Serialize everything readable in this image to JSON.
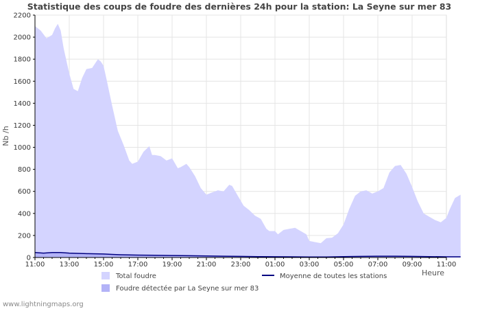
{
  "chart_data": {
    "type": "area",
    "title": "Statistique des coups de foudre des dernières 24h pour la station: La Seyne sur mer 83",
    "ylabel": "Nb /h",
    "xlabel": "Heure",
    "ylim": [
      0,
      2200
    ],
    "y_ticks": [
      0,
      200,
      400,
      600,
      800,
      1000,
      1200,
      1400,
      1600,
      1800,
      2000,
      2200
    ],
    "x_ticks": [
      "11:00",
      "13:00",
      "15:00",
      "17:00",
      "19:00",
      "21:00",
      "23:00",
      "01:00",
      "03:00",
      "05:00",
      "07:00",
      "09:00",
      "11:00"
    ],
    "x_hours": [
      0,
      24
    ],
    "series": [
      {
        "name": "Total foudre",
        "style": "area",
        "color": "#d4d4ff",
        "points": [
          [
            0,
            2100
          ],
          [
            0.33,
            2060
          ],
          [
            0.67,
            1990
          ],
          [
            1,
            2020
          ],
          [
            1.17,
            2080
          ],
          [
            1.33,
            2120
          ],
          [
            1.5,
            2060
          ],
          [
            1.67,
            1900
          ],
          [
            2,
            1670
          ],
          [
            2.25,
            1530
          ],
          [
            2.5,
            1510
          ],
          [
            2.75,
            1630
          ],
          [
            3,
            1710
          ],
          [
            3.33,
            1720
          ],
          [
            3.67,
            1800
          ],
          [
            3.83,
            1780
          ],
          [
            4,
            1740
          ],
          [
            4.17,
            1620
          ],
          [
            4.5,
            1380
          ],
          [
            4.83,
            1150
          ],
          [
            5.17,
            1020
          ],
          [
            5.5,
            880
          ],
          [
            5.67,
            850
          ],
          [
            6,
            870
          ],
          [
            6.33,
            960
          ],
          [
            6.67,
            1010
          ],
          [
            6.83,
            930
          ],
          [
            7,
            930
          ],
          [
            7.33,
            920
          ],
          [
            7.67,
            880
          ],
          [
            8,
            900
          ],
          [
            8.33,
            810
          ],
          [
            8.5,
            820
          ],
          [
            8.83,
            850
          ],
          [
            9,
            820
          ],
          [
            9.33,
            740
          ],
          [
            9.67,
            630
          ],
          [
            10,
            570
          ],
          [
            10.33,
            590
          ],
          [
            10.67,
            610
          ],
          [
            11,
            600
          ],
          [
            11.33,
            660
          ],
          [
            11.5,
            650
          ],
          [
            11.83,
            560
          ],
          [
            12.17,
            470
          ],
          [
            12.5,
            430
          ],
          [
            12.83,
            380
          ],
          [
            13.17,
            350
          ],
          [
            13.5,
            260
          ],
          [
            13.67,
            240
          ],
          [
            14,
            240
          ],
          [
            14.17,
            210
          ],
          [
            14.5,
            250
          ],
          [
            14.83,
            260
          ],
          [
            15.17,
            270
          ],
          [
            15.5,
            240
          ],
          [
            15.83,
            210
          ],
          [
            16,
            150
          ],
          [
            16.33,
            140
          ],
          [
            16.67,
            130
          ],
          [
            17,
            175
          ],
          [
            17.33,
            180
          ],
          [
            17.67,
            220
          ],
          [
            18,
            300
          ],
          [
            18.33,
            440
          ],
          [
            18.67,
            560
          ],
          [
            19,
            600
          ],
          [
            19.33,
            610
          ],
          [
            19.67,
            580
          ],
          [
            20,
            600
          ],
          [
            20.33,
            630
          ],
          [
            20.67,
            770
          ],
          [
            21,
            830
          ],
          [
            21.33,
            840
          ],
          [
            21.67,
            760
          ],
          [
            22,
            640
          ],
          [
            22.33,
            510
          ],
          [
            22.67,
            400
          ],
          [
            23,
            370
          ],
          [
            23.33,
            340
          ],
          [
            23.67,
            320
          ],
          [
            24,
            360
          ],
          [
            24.17,
            430
          ],
          [
            24.5,
            540
          ],
          [
            24.83,
            570
          ]
        ]
      },
      {
        "name": "Foudre détectée par La Seyne sur mer 83",
        "style": "area",
        "color": "#b3b3f7",
        "points": [
          [
            0,
            45
          ],
          [
            0.5,
            40
          ],
          [
            1,
            45
          ],
          [
            1.5,
            45
          ],
          [
            2,
            40
          ],
          [
            3,
            35
          ],
          [
            4,
            32
          ],
          [
            4.5,
            28
          ],
          [
            5,
            25
          ],
          [
            6,
            22
          ],
          [
            7,
            20
          ],
          [
            8,
            18
          ],
          [
            9,
            16
          ],
          [
            10,
            14
          ],
          [
            11,
            12
          ],
          [
            12,
            10
          ],
          [
            13,
            8
          ],
          [
            14,
            7
          ],
          [
            15,
            6
          ],
          [
            16,
            5
          ],
          [
            17,
            5
          ],
          [
            18,
            8
          ],
          [
            19,
            10
          ],
          [
            20,
            12
          ],
          [
            21,
            12
          ],
          [
            22,
            10
          ],
          [
            23,
            8
          ],
          [
            24,
            6
          ],
          [
            24.83,
            6
          ]
        ]
      },
      {
        "name": "Moyenne de toutes les stations",
        "style": "line",
        "color": "#000080",
        "points": [
          [
            0,
            45
          ],
          [
            0.5,
            40
          ],
          [
            1,
            45
          ],
          [
            1.5,
            45
          ],
          [
            2,
            40
          ],
          [
            3,
            35
          ],
          [
            4,
            32
          ],
          [
            4.5,
            28
          ],
          [
            5,
            25
          ],
          [
            6,
            22
          ],
          [
            7,
            20
          ],
          [
            8,
            18
          ],
          [
            9,
            16
          ],
          [
            10,
            14
          ],
          [
            11,
            12
          ],
          [
            12,
            10
          ],
          [
            13,
            8
          ],
          [
            14,
            7
          ],
          [
            15,
            6
          ],
          [
            16,
            5
          ],
          [
            17,
            5
          ],
          [
            18,
            8
          ],
          [
            19,
            10
          ],
          [
            20,
            12
          ],
          [
            21,
            12
          ],
          [
            22,
            10
          ],
          [
            23,
            8
          ],
          [
            24,
            6
          ],
          [
            24.83,
            6
          ]
        ]
      }
    ],
    "legend": [
      {
        "label": "Total foudre",
        "kind": "box",
        "color": "#d4d4ff"
      },
      {
        "label": "Moyenne de toutes les stations",
        "kind": "line",
        "color": "#000080"
      },
      {
        "label": "Foudre détectée par La Seyne sur mer 83",
        "kind": "box",
        "color": "#b3b3f7"
      }
    ],
    "grid": true,
    "legend_position": "bottom"
  },
  "footer": "www.lightningmaps.org"
}
